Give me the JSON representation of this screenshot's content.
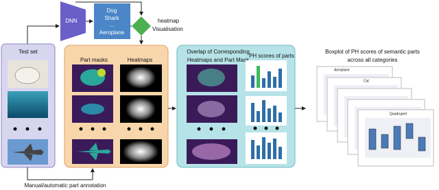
{
  "dnn": {
    "label": "DNN"
  },
  "classes": [
    "Dog",
    "Shark",
    "...",
    "Aeroplane"
  ],
  "decision": {
    "label": [
      "heatmap",
      "Visualisation"
    ]
  },
  "test_set": {
    "title": "Test set"
  },
  "part_masks": {
    "title": "Part masks"
  },
  "heatmaps": {
    "title": "Heatmaps"
  },
  "overlap": {
    "title": [
      "Overlap of Corresponding",
      "Heatmaps and Part Mask"
    ]
  },
  "ph_scores": {
    "title": "PH scores of parts"
  },
  "boxplot": {
    "title": [
      "Boxplot of PH scores  of semantic parts",
      "across all categories"
    ],
    "panels": [
      "Aeroplane",
      "Cat",
      "Quadruped"
    ]
  },
  "annotation": {
    "label": "Manual/automatic part annotation"
  }
}
